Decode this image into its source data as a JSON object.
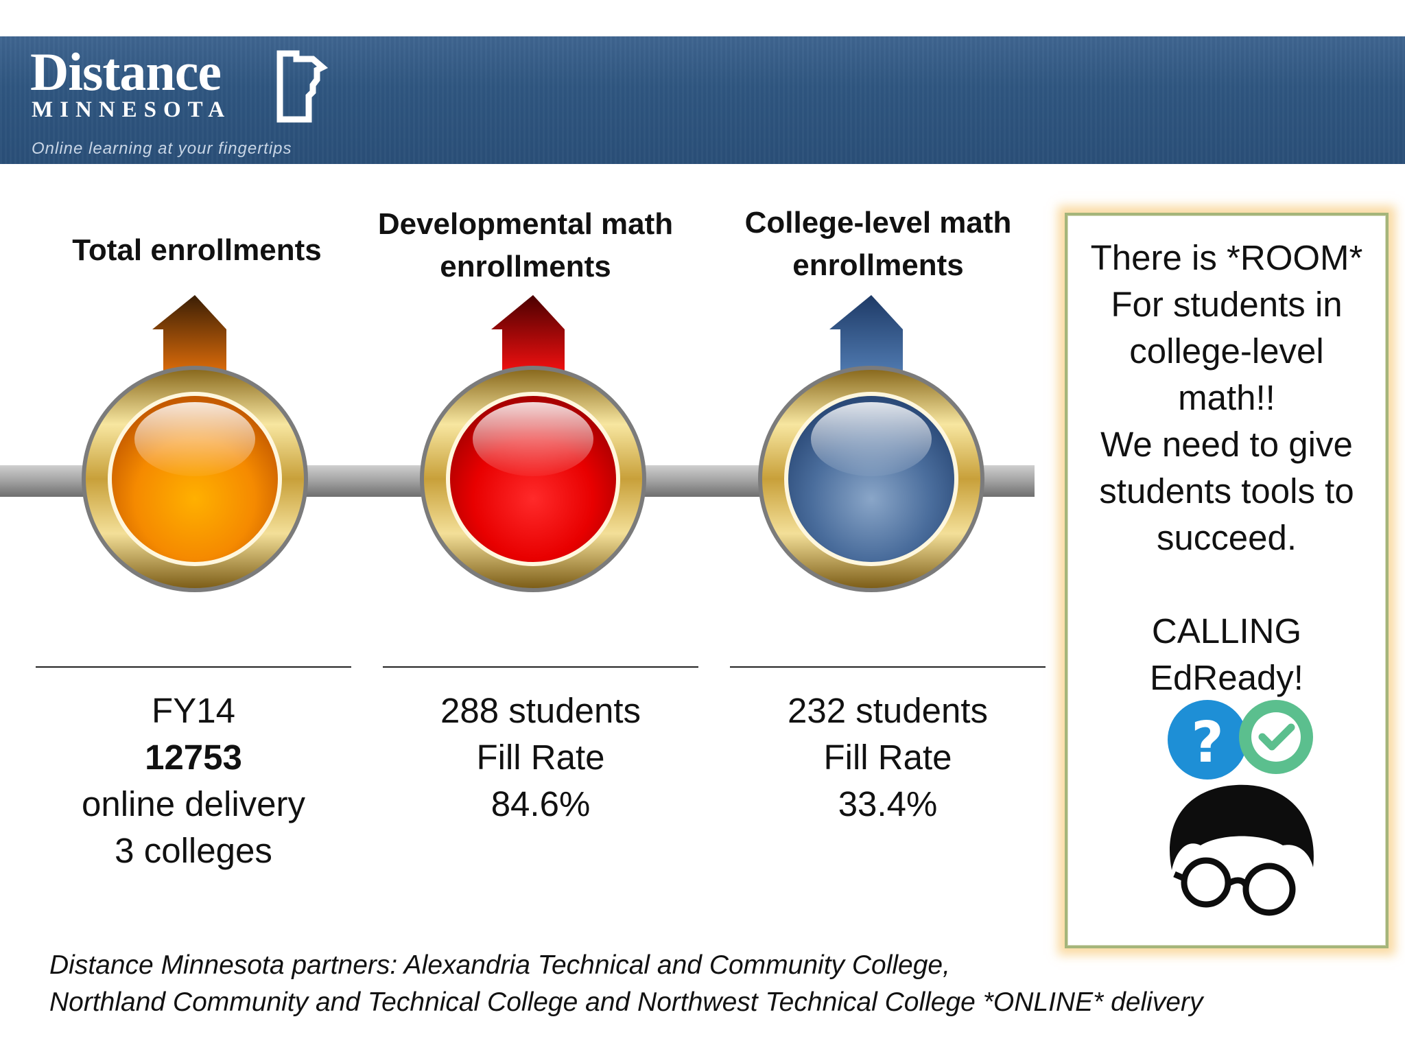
{
  "header": {
    "logo_word": "Distance",
    "logo_sub": "MINNESOTA",
    "tagline": "Online learning at your fingertips"
  },
  "milestones": [
    {
      "heading": "Total enrollments",
      "color": "#f08a00",
      "lines": [
        "FY14",
        "12753",
        "online delivery",
        "3 colleges"
      ]
    },
    {
      "heading_line1": "Developmental math",
      "heading_line2": "enrollments",
      "color": "#e80000",
      "lines": [
        "288 students",
        "Fill Rate",
        "84.6%"
      ]
    },
    {
      "heading_line1": "College-level math",
      "heading_line2": "enrollments",
      "color": "#3a5f92",
      "lines": [
        "232 students",
        "Fill Rate",
        "33.4%"
      ]
    }
  ],
  "callout": {
    "lines": [
      "There is *ROOM*",
      "For students in",
      "college-level",
      "math!!",
      "We need to give",
      "students tools to",
      "succeed."
    ],
    "lines2": [
      "CALLING",
      "EdReady!"
    ]
  },
  "footer": {
    "line1": "Distance Minnesota partners: Alexandria Technical and Community College,",
    "line2": "Northland Community and Technical College and Northwest Technical College *ONLINE* delivery"
  }
}
